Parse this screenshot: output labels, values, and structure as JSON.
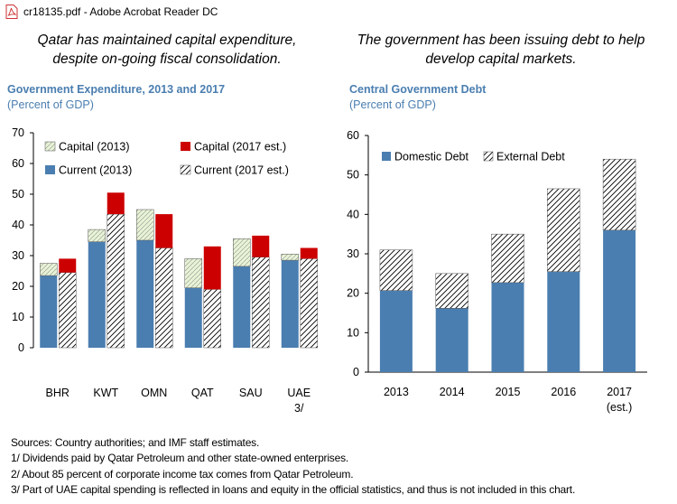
{
  "window": {
    "title": "cr18135.pdf - Adobe Acrobat Reader DC"
  },
  "left": {
    "headline_line1": "Qatar has maintained capital expenditure,",
    "headline_line2": "despite on-going fiscal consolidation.",
    "title": "Government Expenditure, 2013 and 2017",
    "subtitle": "(Percent of GDP)"
  },
  "right": {
    "headline_line1": "The government has been issuing debt to help",
    "headline_line2": "develop capital markets.",
    "title": "Central Government Debt",
    "subtitle": "(Percent of GDP)"
  },
  "notes": [
    "Sources: Country authorities; and IMF staff estimates.",
    "1/ Dividends paid by Qatar Petroleum and other state-owned enterprises.",
    "2/ About 85 percent of corporate income tax comes from Qatar Petroleum.",
    "3/ Part of UAE capital spending  is reflected in loans and equity in the official statistics, and thus is not included in this chart."
  ],
  "colors": {
    "blue": "#4a7eb0",
    "red": "#cc0000",
    "capital_2013_fill": "#e8f3d6",
    "hatch": "#000000"
  },
  "chart_data": [
    {
      "type": "bar",
      "stacked": true,
      "title": "Government Expenditure, 2013 and 2017",
      "subtitle": "(Percent of GDP)",
      "categories": [
        "BHR",
        "KWT",
        "OMN",
        "QAT",
        "SAU",
        "UAE 3/"
      ],
      "category_labels": [
        [
          "BHR"
        ],
        [
          "KWT"
        ],
        [
          "OMN"
        ],
        [
          "QAT"
        ],
        [
          "SAU"
        ],
        [
          "UAE",
          "3/"
        ]
      ],
      "ylim": [
        0,
        70
      ],
      "yticks": [
        0,
        10,
        20,
        30,
        40,
        50,
        60,
        70
      ],
      "grid": false,
      "legend_position": "top",
      "legend": [
        "Capital (2013)",
        "Capital (2017 est.)",
        "Current (2013)",
        "Current (2017 est.)"
      ],
      "series": [
        {
          "name": "Current (2013)",
          "style": "blue",
          "group": "2013",
          "values": [
            23.5,
            34.5,
            35,
            19.5,
            26.5,
            28.5
          ]
        },
        {
          "name": "Capital (2013)",
          "style": "dots",
          "group": "2013",
          "values": [
            4,
            4,
            10,
            9.5,
            9,
            2
          ]
        },
        {
          "name": "Current (2017 est.)",
          "style": "hatch",
          "group": "2017",
          "values": [
            24.5,
            43.5,
            32.5,
            19,
            29.5,
            29
          ]
        },
        {
          "name": "Capital (2017 est.)",
          "style": "red",
          "group": "2017",
          "values": [
            4.5,
            7,
            11,
            14,
            7,
            3.5
          ]
        }
      ]
    },
    {
      "type": "bar",
      "stacked": true,
      "title": "Central Government Debt",
      "subtitle": "(Percent of GDP)",
      "categories": [
        "2013",
        "2014",
        "2015",
        "2016",
        "2017 (est.)"
      ],
      "category_labels": [
        [
          "2013"
        ],
        [
          "2014"
        ],
        [
          "2015"
        ],
        [
          "2016"
        ],
        [
          "2017",
          "(est.)"
        ]
      ],
      "ylim": [
        0,
        60
      ],
      "yticks": [
        0,
        10,
        20,
        30,
        40,
        50,
        60
      ],
      "grid": false,
      "legend_position": "top",
      "legend": [
        "Domestic Debt",
        "External Debt"
      ],
      "series": [
        {
          "name": "Domestic Debt",
          "style": "blue",
          "values": [
            20.7,
            16.2,
            22.7,
            25.5,
            36
          ]
        },
        {
          "name": "External Debt",
          "style": "hatch",
          "values": [
            10.3,
            8.8,
            12.3,
            21,
            18
          ]
        }
      ]
    }
  ]
}
